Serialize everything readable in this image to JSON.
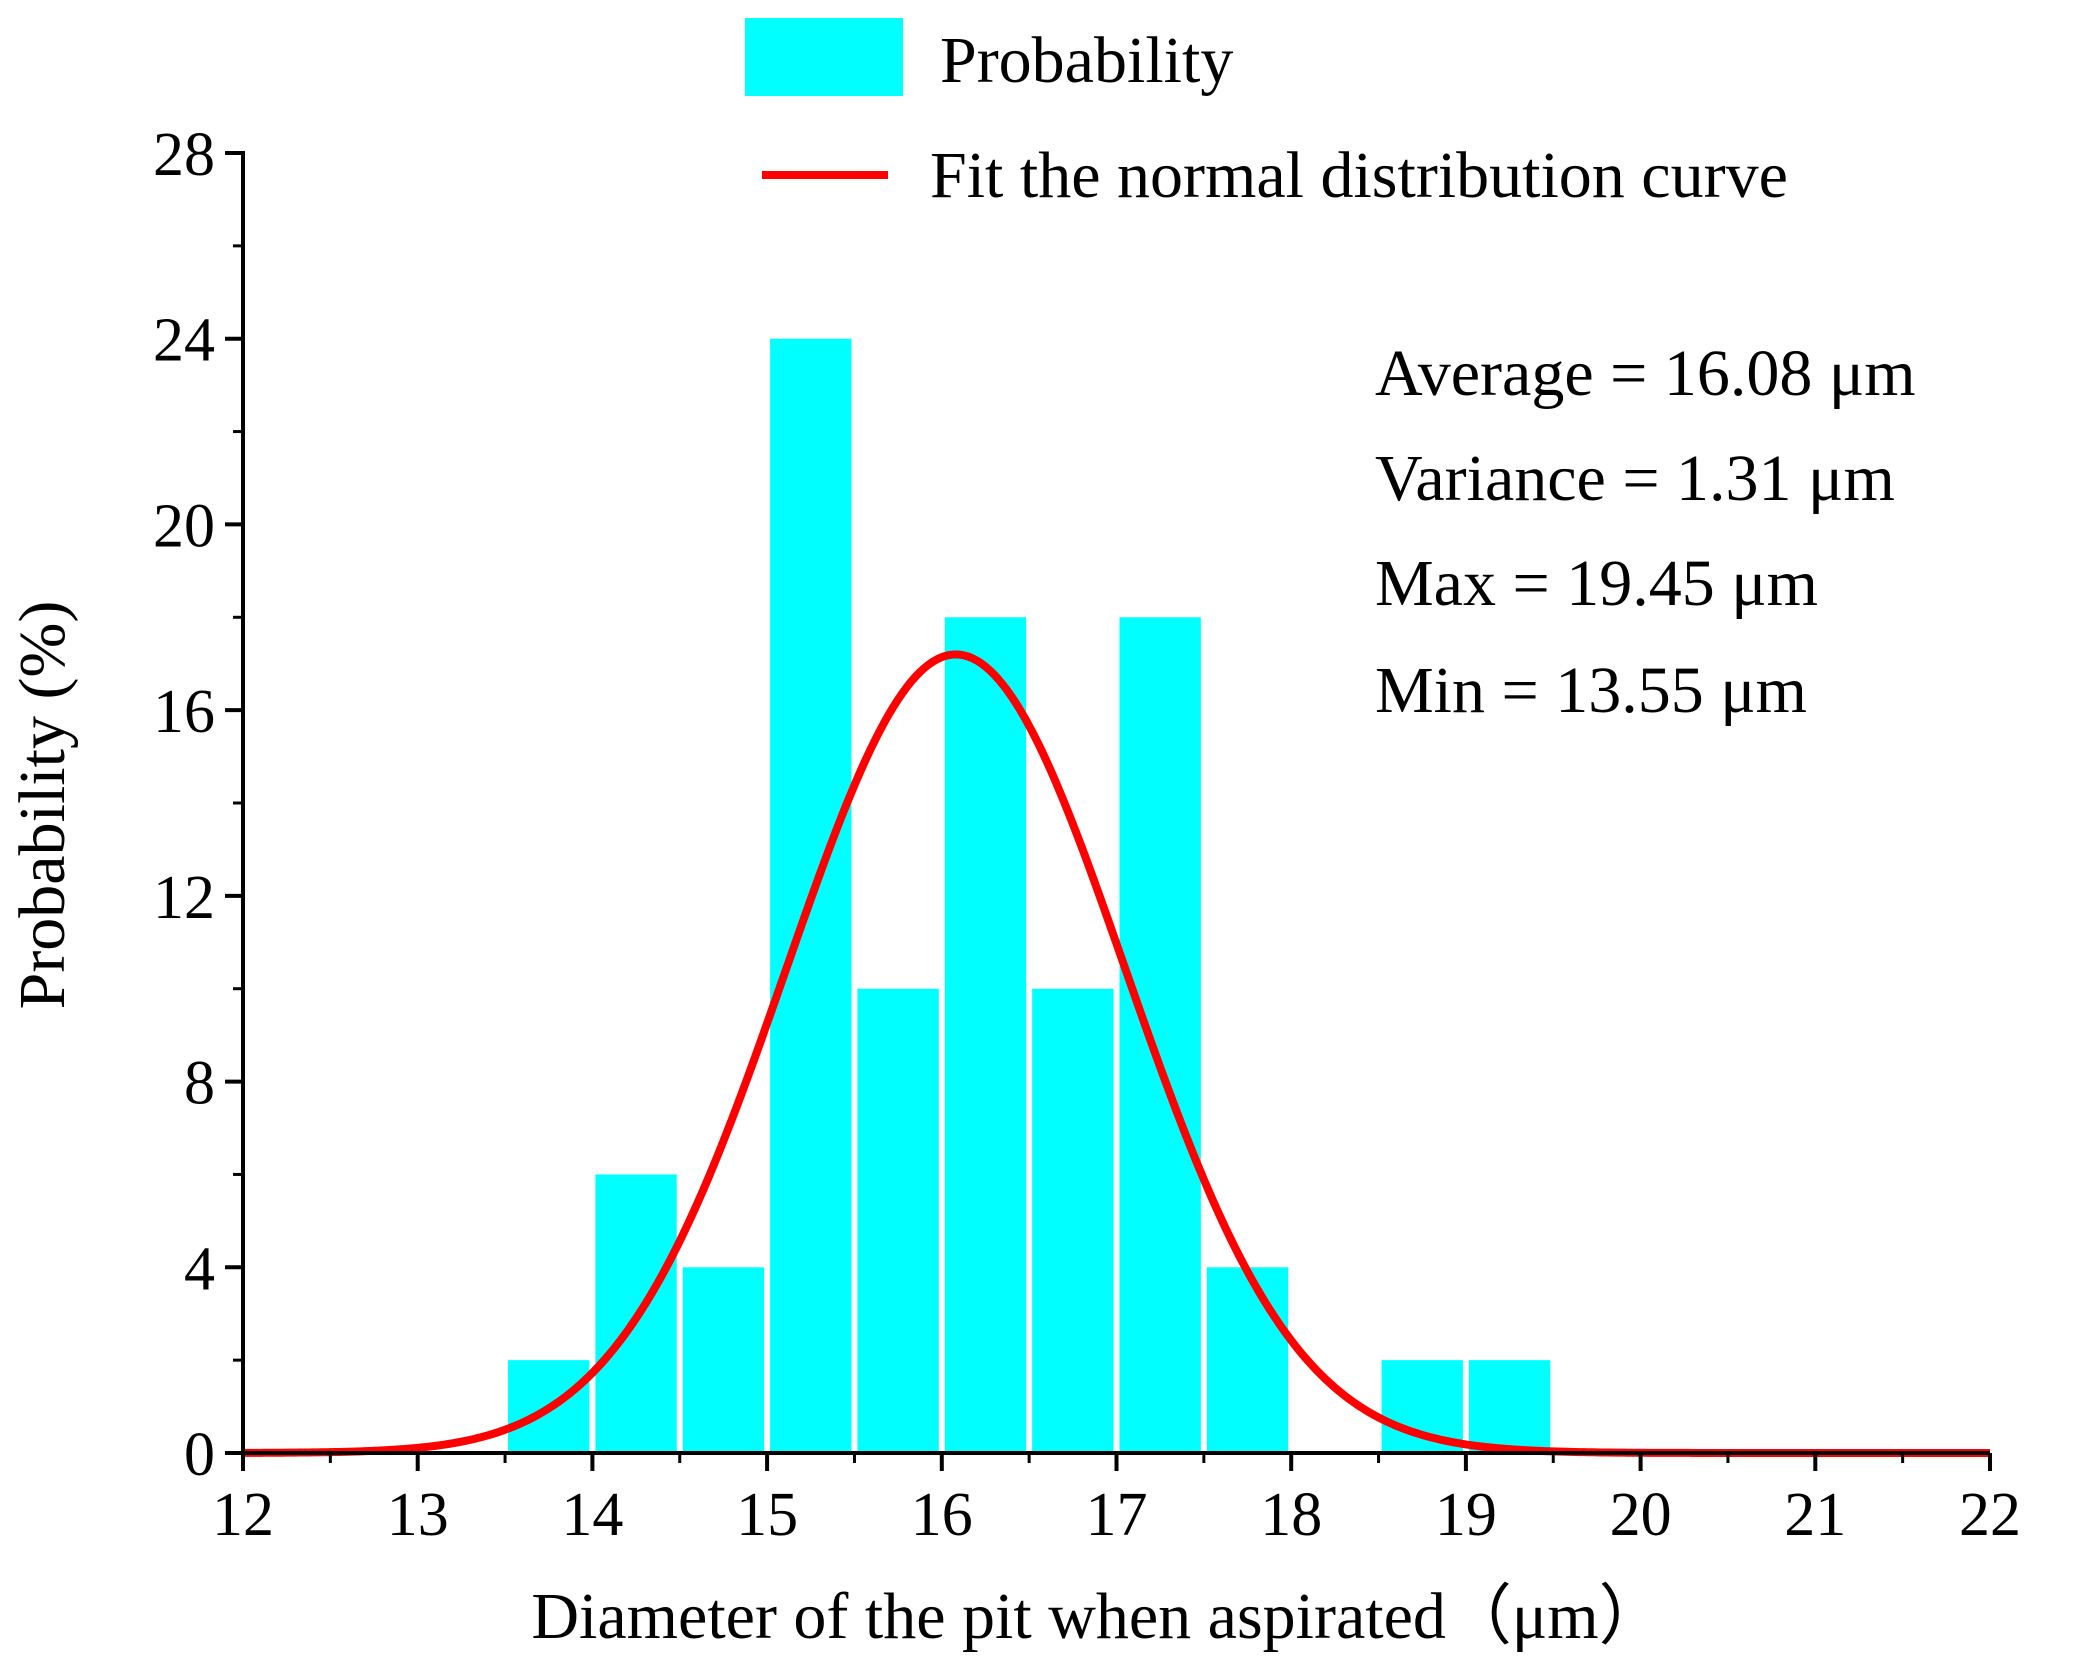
{
  "chart_data": {
    "type": "bar",
    "title": "",
    "xlabel": "Diameter of the pit when aspirated（μm）",
    "ylabel": "Probability (%)",
    "xlim": [
      12,
      22
    ],
    "ylim": [
      0,
      28
    ],
    "xticks": [
      12,
      13,
      14,
      15,
      16,
      17,
      18,
      19,
      20,
      21,
      22
    ],
    "yticks": [
      0,
      4,
      8,
      12,
      16,
      20,
      24,
      28
    ],
    "bin_width": 0.5,
    "bars": [
      {
        "x0": 13.5,
        "x1": 14.0,
        "value": 2
      },
      {
        "x0": 14.0,
        "x1": 14.5,
        "value": 6
      },
      {
        "x0": 14.5,
        "x1": 15.0,
        "value": 4
      },
      {
        "x0": 15.0,
        "x1": 15.5,
        "value": 24
      },
      {
        "x0": 15.5,
        "x1": 16.0,
        "value": 10
      },
      {
        "x0": 16.0,
        "x1": 16.5,
        "value": 18
      },
      {
        "x0": 16.5,
        "x1": 17.0,
        "value": 10
      },
      {
        "x0": 17.0,
        "x1": 17.5,
        "value": 18
      },
      {
        "x0": 17.5,
        "x1": 18.0,
        "value": 4
      },
      {
        "x0": 18.5,
        "x1": 19.0,
        "value": 2
      },
      {
        "x0": 19.0,
        "x1": 19.5,
        "value": 2
      }
    ],
    "fit_curve": {
      "type": "normal",
      "mean": 16.08,
      "sigma": 0.97,
      "peak": 17.2
    },
    "legend": {
      "placement": "top",
      "items": [
        {
          "label": "Probability",
          "kind": "bar"
        },
        {
          "label": "Fit the normal distribution curve",
          "kind": "line"
        }
      ]
    },
    "annotations": [
      "Average = 16.08 μm",
      "Variance = 1.31 μm",
      "Max = 19.45 μm",
      "Min = 13.55 μm"
    ]
  },
  "colors": {
    "bar": "#00ffff",
    "curve": "#ff0000",
    "axis": "#000000"
  }
}
